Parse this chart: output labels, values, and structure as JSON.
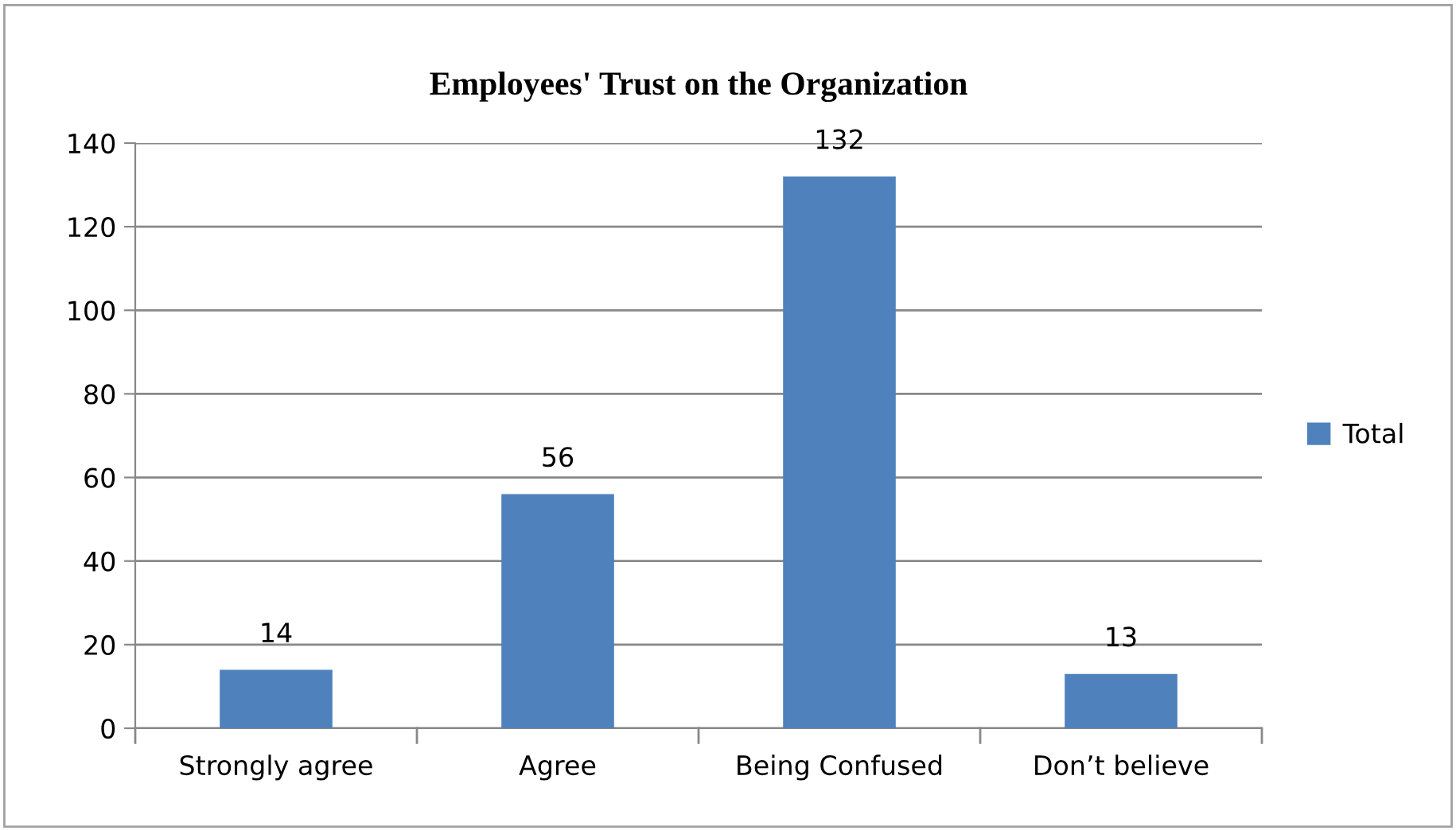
{
  "chart_data": {
    "type": "bar",
    "title": "Employees' Trust on the Organization",
    "categories": [
      "Strongly agree",
      "Agree",
      "Being Confused",
      "Don’t believe"
    ],
    "series": [
      {
        "name": "Total",
        "color": "#4f81bd",
        "values": [
          14,
          56,
          132,
          13
        ]
      }
    ],
    "ylim": [
      0,
      140
    ],
    "yticks": [
      0,
      20,
      40,
      60,
      80,
      100,
      120,
      140
    ],
    "grid": "y",
    "legend": "right",
    "data_labels": true
  }
}
